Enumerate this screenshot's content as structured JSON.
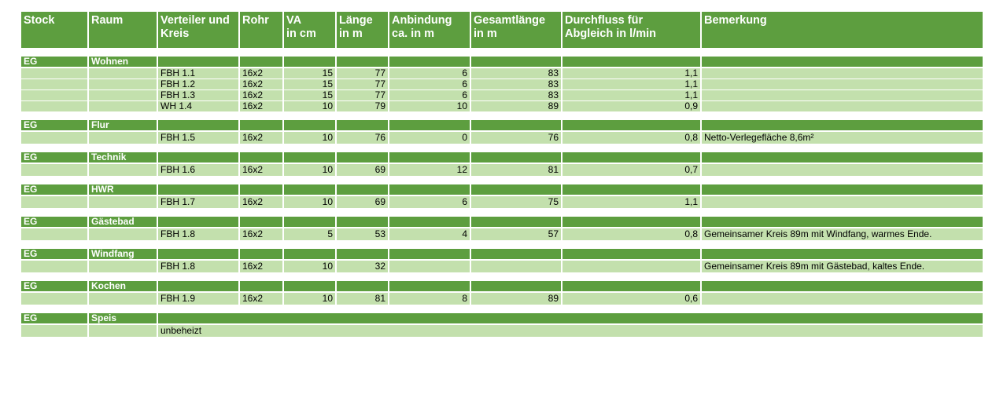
{
  "headers": {
    "stock": "Stock",
    "raum": "Raum",
    "verteiler_1": "Verteiler und",
    "verteiler_2": "Kreis",
    "rohr": "Rohr",
    "va_1": "VA",
    "va_2": "in cm",
    "laenge_1": "Länge",
    "laenge_2": "in m",
    "anbindung_1": "Anbindung",
    "anbindung_2": "ca. in m",
    "gesamt_1": "Gesamtlänge",
    "gesamt_2": "in m",
    "durchfluss_1": "Durchfluss  für",
    "durchfluss_2": "Abgleich in l/min",
    "bemerkung": "Bemerkung"
  },
  "rooms": [
    {
      "stock": "EG",
      "raum": "Wohnen",
      "circuits": [
        {
          "kreis": "FBH 1.1",
          "rohr": "16x2",
          "va": "15",
          "laenge": "77",
          "anbindung": "6",
          "gesamt": "83",
          "durchfluss": "1,1",
          "bemerkung": ""
        },
        {
          "kreis": "FBH 1.2",
          "rohr": "16x2",
          "va": "15",
          "laenge": "77",
          "anbindung": "6",
          "gesamt": "83",
          "durchfluss": "1,1",
          "bemerkung": ""
        },
        {
          "kreis": "FBH 1.3",
          "rohr": "16x2",
          "va": "15",
          "laenge": "77",
          "anbindung": "6",
          "gesamt": "83",
          "durchfluss": "1,1",
          "bemerkung": ""
        },
        {
          "kreis": "WH 1.4",
          "rohr": "16x2",
          "va": "10",
          "laenge": "79",
          "anbindung": "10",
          "gesamt": "89",
          "durchfluss": "0,9",
          "bemerkung": ""
        }
      ]
    },
    {
      "stock": "EG",
      "raum": "Flur",
      "circuits": [
        {
          "kreis": "FBH 1.5",
          "rohr": "16x2",
          "va": "10",
          "laenge": "76",
          "anbindung": "0",
          "gesamt": "76",
          "durchfluss": "0,8",
          "bemerkung": "Netto-Verlegefläche 8,6m²"
        }
      ]
    },
    {
      "stock": "EG",
      "raum": "Technik",
      "circuits": [
        {
          "kreis": "FBH 1.6",
          "rohr": "16x2",
          "va": "10",
          "laenge": "69",
          "anbindung": "12",
          "gesamt": "81",
          "durchfluss": "0,7",
          "bemerkung": ""
        }
      ]
    },
    {
      "stock": "EG",
      "raum": "HWR",
      "circuits": [
        {
          "kreis": "FBH 1.7",
          "rohr": "16x2",
          "va": "10",
          "laenge": "69",
          "anbindung": "6",
          "gesamt": "75",
          "durchfluss": "1,1",
          "bemerkung": ""
        }
      ]
    },
    {
      "stock": "EG",
      "raum": "Gästebad",
      "circuits": [
        {
          "kreis": "FBH 1.8",
          "rohr": "16x2",
          "va": "5",
          "laenge": "53",
          "anbindung": "4",
          "gesamt": "57",
          "durchfluss": "0,8",
          "bemerkung": "Gemeinsamer Kreis 89m mit Windfang, warmes Ende."
        }
      ]
    },
    {
      "stock": "EG",
      "raum": "Windfang",
      "circuits": [
        {
          "kreis": "FBH 1.8",
          "rohr": "16x2",
          "va": "10",
          "laenge": "32",
          "anbindung": "",
          "gesamt": "",
          "durchfluss": "",
          "bemerkung": "Gemeinsamer Kreis 89m mit Gästebad, kaltes Ende."
        }
      ]
    },
    {
      "stock": "EG",
      "raum": "Kochen",
      "circuits": [
        {
          "kreis": "FBH 1.9",
          "rohr": "16x2",
          "va": "10",
          "laenge": "81",
          "anbindung": "8",
          "gesamt": "89",
          "durchfluss": "0,6",
          "bemerkung": ""
        }
      ]
    },
    {
      "stock": "EG",
      "raum": "Speis",
      "merged": true,
      "circuits": [
        {
          "kreis": "unbeheizt",
          "rohr": "",
          "va": "",
          "laenge": "",
          "anbindung": "",
          "gesamt": "",
          "durchfluss": "",
          "bemerkung": ""
        }
      ]
    }
  ]
}
